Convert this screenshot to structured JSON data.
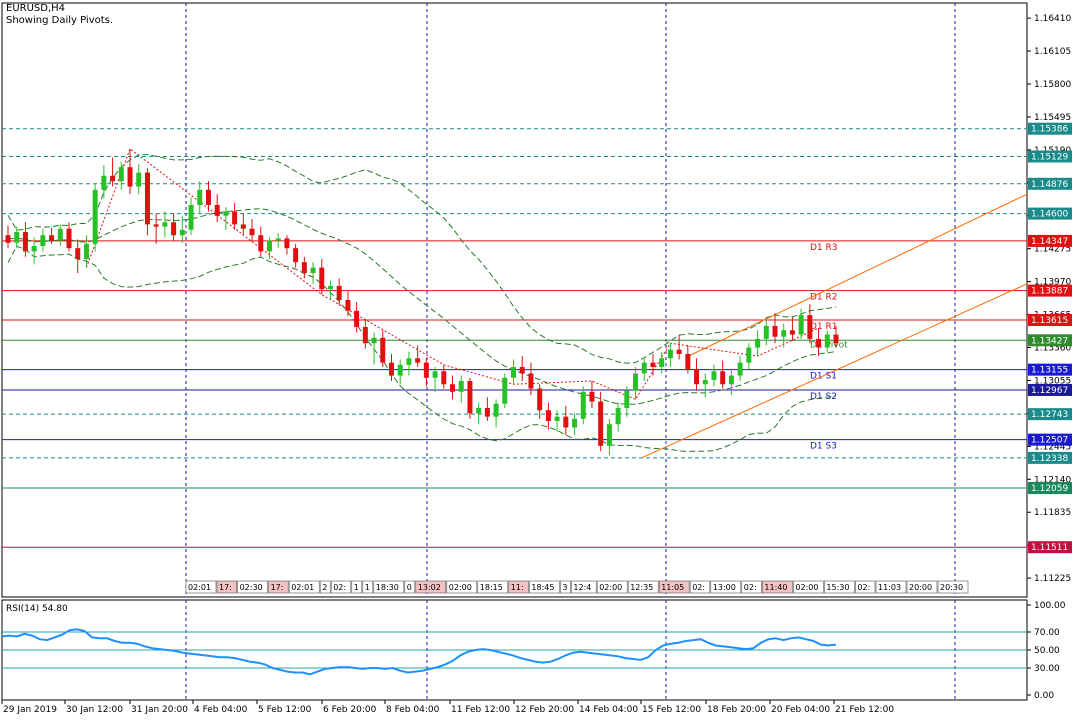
{
  "header": {
    "symbol": "EURUSD,H4",
    "subtitle": "Showing Daily Pivots."
  },
  "colors": {
    "bull": "#27c127",
    "bear": "#e01010",
    "axis": "#000000",
    "grid": "#1a1aa8",
    "band": "#2a7a2a",
    "rsi": "#1e90ff",
    "channel": "#ff6a00"
  },
  "chart_data": {
    "type": "candlestick",
    "price_axis": {
      "min": 1.1105,
      "max": 1.1655,
      "ticks": [
        "1.16410",
        "1.16105",
        "1.15800",
        "1.15495",
        "1.15190",
        "1.14885",
        "1.14580",
        "1.14275",
        "1.13970",
        "1.13665",
        "1.13360",
        "1.13055",
        "1.12750",
        "1.12445",
        "1.12140",
        "1.11835",
        "1.11530",
        "1.11225"
      ]
    },
    "levels": [
      {
        "price": 1.15386,
        "label": "1.15386",
        "name": "",
        "color": "#1a8a8a",
        "style": "dash"
      },
      {
        "price": 1.15129,
        "label": "1.15129",
        "name": "",
        "color": "#1a8a8a",
        "style": "dash"
      },
      {
        "price": 1.14876,
        "label": "1.14876",
        "name": "",
        "color": "#1a8a8a",
        "style": "dash"
      },
      {
        "price": 1.146,
        "label": "1.14600",
        "name": "",
        "color": "#1a8a8a",
        "style": "dash"
      },
      {
        "price": 1.14347,
        "label": "1.14347",
        "name": "D1 R3",
        "color": "#e01010",
        "style": "solid"
      },
      {
        "price": 1.13887,
        "label": "1.13887",
        "name": "D1 R2",
        "color": "#e01010",
        "style": "solid"
      },
      {
        "price": 1.13615,
        "label": "1.13615",
        "name": "D1 R1",
        "color": "#e01010",
        "style": "solid"
      },
      {
        "price": 1.13427,
        "label": "1.13427",
        "name": "D1 Pivot",
        "color": "#2e8b2e",
        "style": "solid"
      },
      {
        "price": 1.13155,
        "label": "1.13155",
        "name": "D1 S1",
        "color": "#1a1ad0",
        "style": "solid"
      },
      {
        "price": 1.12967,
        "label": "1.12967",
        "name": "D1 S2",
        "color": "#1a1a9a",
        "style": "solid"
      },
      {
        "price": 1.12743,
        "label": "1.12743",
        "name": "",
        "color": "#1a8a8a",
        "style": "dash"
      },
      {
        "price": 1.12507,
        "label": "1.12507",
        "name": "D1 S3",
        "color": "#1a1ad0",
        "style": "solid"
      },
      {
        "price": 1.12338,
        "label": "1.12338",
        "name": "",
        "color": "#1a8a8a",
        "style": "dash"
      },
      {
        "price": 1.12059,
        "label": "1.12059",
        "name": "",
        "color": "#1a8a5a",
        "style": "solid"
      },
      {
        "price": 1.11511,
        "label": "1.11511",
        "name": "",
        "color": "#c01040",
        "style": "solid"
      }
    ],
    "time_labels": [
      "29 Jan 2019",
      "30 Jan 12:00",
      "31 Jan 20:00",
      "4 Feb 04:00",
      "5 Feb 12:00",
      "6 Feb 20:00",
      "8 Feb 04:00",
      "11 Feb 12:00",
      "12 Feb 20:00",
      "14 Feb 04:00",
      "15 Feb 12:00",
      "18 Feb 20:00",
      "20 Feb 04:00",
      "21 Feb 12:00"
    ],
    "time_strip": [
      "02:01",
      "17:",
      "02:30",
      "17:",
      "02:01",
      "2",
      "02:",
      "1",
      "1",
      "18:30",
      "0",
      "13:02",
      "02:00",
      "18:15",
      "11:",
      "18:45",
      "3",
      "12:4",
      "02:00",
      "12:35",
      "11:05",
      "02:",
      "13:00",
      "02:",
      "11:40",
      "02:00",
      "15:30",
      "02:",
      "11:03",
      "20:00",
      "20:30"
    ],
    "rsi": {
      "label": "RSI(14) 54.80",
      "levels": [
        70,
        50,
        30
      ],
      "ticks": [
        "100.00",
        "70.00",
        "50.00",
        "30.00",
        "0.00"
      ],
      "values": [
        65,
        66,
        65,
        68,
        66,
        62,
        61,
        64,
        67,
        72,
        73,
        71,
        64,
        63,
        63,
        60,
        58,
        58,
        57,
        54,
        52,
        51,
        50,
        49,
        47,
        46,
        45,
        44,
        43,
        42,
        42,
        41,
        39,
        37,
        36,
        34,
        30,
        28,
        26,
        25,
        25,
        23,
        26,
        29,
        30,
        31,
        31,
        30,
        29,
        30,
        30,
        29,
        30,
        27,
        25,
        26,
        27,
        29,
        31,
        34,
        38,
        44,
        48,
        50,
        51,
        50,
        48,
        46,
        44,
        41,
        39,
        37,
        36,
        37,
        40,
        44,
        47,
        48,
        47,
        46,
        45,
        44,
        43,
        41,
        40,
        39,
        42,
        50,
        55,
        57,
        58,
        60,
        61,
        62,
        58,
        55,
        54,
        53,
        52,
        51,
        52,
        58,
        62,
        63,
        61,
        63,
        64,
        62,
        60,
        56,
        55,
        56
      ]
    },
    "candles_desc": "EURUSD H4 from 29 Jan 2019 to 21 Feb 2019",
    "candles": [
      [
        1.144,
        1.1449,
        1.1428,
        1.1433
      ],
      [
        1.1433,
        1.1448,
        1.1428,
        1.1443
      ],
      [
        1.1443,
        1.1452,
        1.142,
        1.1425
      ],
      [
        1.1425,
        1.1438,
        1.1413,
        1.143
      ],
      [
        1.143,
        1.1446,
        1.1425,
        1.144
      ],
      [
        1.144,
        1.1447,
        1.1432,
        1.1435
      ],
      [
        1.1435,
        1.145,
        1.143,
        1.1446
      ],
      [
        1.1446,
        1.1452,
        1.1425,
        1.1428
      ],
      [
        1.1428,
        1.1436,
        1.1405,
        1.1418
      ],
      [
        1.1418,
        1.144,
        1.141,
        1.1432
      ],
      [
        1.1432,
        1.1488,
        1.1425,
        1.1482
      ],
      [
        1.1482,
        1.1505,
        1.1474,
        1.1495
      ],
      [
        1.1495,
        1.1512,
        1.1485,
        1.149
      ],
      [
        1.149,
        1.1508,
        1.1482,
        1.1503
      ],
      [
        1.1503,
        1.152,
        1.1478,
        1.1485
      ],
      [
        1.1485,
        1.1506,
        1.1478,
        1.1498
      ],
      [
        1.1498,
        1.1502,
        1.144,
        1.145
      ],
      [
        1.145,
        1.146,
        1.1432,
        1.1448
      ],
      [
        1.1448,
        1.1462,
        1.1438,
        1.1452
      ],
      [
        1.1452,
        1.146,
        1.1435,
        1.144
      ],
      [
        1.144,
        1.1458,
        1.1433,
        1.1445
      ],
      [
        1.1445,
        1.1475,
        1.144,
        1.1468
      ],
      [
        1.1468,
        1.149,
        1.146,
        1.1482
      ],
      [
        1.1482,
        1.149,
        1.1462,
        1.1468
      ],
      [
        1.1468,
        1.1478,
        1.1452,
        1.1458
      ],
      [
        1.1458,
        1.1466,
        1.1445,
        1.1462
      ],
      [
        1.1462,
        1.147,
        1.1445,
        1.145
      ],
      [
        1.145,
        1.146,
        1.144,
        1.1446
      ],
      [
        1.1446,
        1.1455,
        1.1435,
        1.144
      ],
      [
        1.144,
        1.1448,
        1.142,
        1.1425
      ],
      [
        1.1425,
        1.1438,
        1.1418,
        1.1435
      ],
      [
        1.1435,
        1.1442,
        1.1428,
        1.1437
      ],
      [
        1.1437,
        1.144,
        1.1422,
        1.1428
      ],
      [
        1.1428,
        1.1432,
        1.141,
        1.1415
      ],
      [
        1.1415,
        1.142,
        1.14,
        1.1405
      ],
      [
        1.1405,
        1.1415,
        1.1395,
        1.141
      ],
      [
        1.141,
        1.1418,
        1.1385,
        1.139
      ],
      [
        1.139,
        1.1398,
        1.138,
        1.1393
      ],
      [
        1.1393,
        1.14,
        1.1375,
        1.138
      ],
      [
        1.138,
        1.1388,
        1.1365,
        1.137
      ],
      [
        1.137,
        1.1378,
        1.135,
        1.1355
      ],
      [
        1.1355,
        1.1362,
        1.1335,
        1.134
      ],
      [
        1.134,
        1.135,
        1.132,
        1.1345
      ],
      [
        1.1345,
        1.1352,
        1.1318,
        1.1322
      ],
      [
        1.1322,
        1.133,
        1.1305,
        1.131
      ],
      [
        1.131,
        1.1325,
        1.1302,
        1.132
      ],
      [
        1.132,
        1.1332,
        1.131,
        1.1326
      ],
      [
        1.1326,
        1.1338,
        1.1318,
        1.1322
      ],
      [
        1.1322,
        1.1326,
        1.13,
        1.1308
      ],
      [
        1.1308,
        1.1318,
        1.1295,
        1.1314
      ],
      [
        1.1314,
        1.132,
        1.1298,
        1.1302
      ],
      [
        1.1302,
        1.131,
        1.1288,
        1.1295
      ],
      [
        1.1295,
        1.131,
        1.1285,
        1.1305
      ],
      [
        1.1305,
        1.1308,
        1.127,
        1.1275
      ],
      [
        1.1275,
        1.1285,
        1.1265,
        1.128
      ],
      [
        1.128,
        1.129,
        1.1268,
        1.1272
      ],
      [
        1.1272,
        1.1288,
        1.1262,
        1.1284
      ],
      [
        1.1284,
        1.1312,
        1.128,
        1.1308
      ],
      [
        1.1308,
        1.1325,
        1.1302,
        1.1318
      ],
      [
        1.1318,
        1.1328,
        1.1305,
        1.1312
      ],
      [
        1.1312,
        1.1322,
        1.1292,
        1.1298
      ],
      [
        1.1298,
        1.1302,
        1.127,
        1.1278
      ],
      [
        1.1278,
        1.1285,
        1.126,
        1.1268
      ],
      [
        1.1268,
        1.1278,
        1.1258,
        1.1272
      ],
      [
        1.1272,
        1.1282,
        1.1255,
        1.1262
      ],
      [
        1.1262,
        1.1275,
        1.1255,
        1.127
      ],
      [
        1.127,
        1.13,
        1.1265,
        1.1295
      ],
      [
        1.1295,
        1.1305,
        1.128,
        1.1286
      ],
      [
        1.1286,
        1.1295,
        1.124,
        1.1245
      ],
      [
        1.1245,
        1.127,
        1.1236,
        1.1265
      ],
      [
        1.1265,
        1.1285,
        1.1258,
        1.128
      ],
      [
        1.128,
        1.13,
        1.1272,
        1.1296
      ],
      [
        1.1296,
        1.1318,
        1.1288,
        1.1312
      ],
      [
        1.1312,
        1.1326,
        1.1305,
        1.1322
      ],
      [
        1.1322,
        1.133,
        1.131,
        1.1318
      ],
      [
        1.1318,
        1.1332,
        1.1312,
        1.1326
      ],
      [
        1.1326,
        1.134,
        1.1318,
        1.1334
      ],
      [
        1.1334,
        1.1348,
        1.1325,
        1.133
      ],
      [
        1.133,
        1.1338,
        1.1312,
        1.1316
      ],
      [
        1.1316,
        1.1326,
        1.1296,
        1.1302
      ],
      [
        1.1302,
        1.1312,
        1.129,
        1.1306
      ],
      [
        1.1306,
        1.132,
        1.13,
        1.1314
      ],
      [
        1.1314,
        1.1324,
        1.1298,
        1.1302
      ],
      [
        1.1302,
        1.1316,
        1.1292,
        1.131
      ],
      [
        1.131,
        1.1328,
        1.1305,
        1.1322
      ],
      [
        1.1322,
        1.134,
        1.1316,
        1.1336
      ],
      [
        1.1336,
        1.1352,
        1.1328,
        1.1344
      ],
      [
        1.1344,
        1.1362,
        1.1338,
        1.1356
      ],
      [
        1.1356,
        1.1368,
        1.134,
        1.1346
      ],
      [
        1.1346,
        1.1358,
        1.1336,
        1.1352
      ],
      [
        1.1352,
        1.1364,
        1.1342,
        1.1348
      ],
      [
        1.1348,
        1.1372,
        1.1344,
        1.1366
      ],
      [
        1.1366,
        1.1376,
        1.134,
        1.1344
      ],
      [
        1.1344,
        1.1354,
        1.1328,
        1.1336
      ],
      [
        1.1336,
        1.1352,
        1.1332,
        1.1348
      ],
      [
        1.1348,
        1.1356,
        1.1336,
        1.134
      ]
    ]
  }
}
